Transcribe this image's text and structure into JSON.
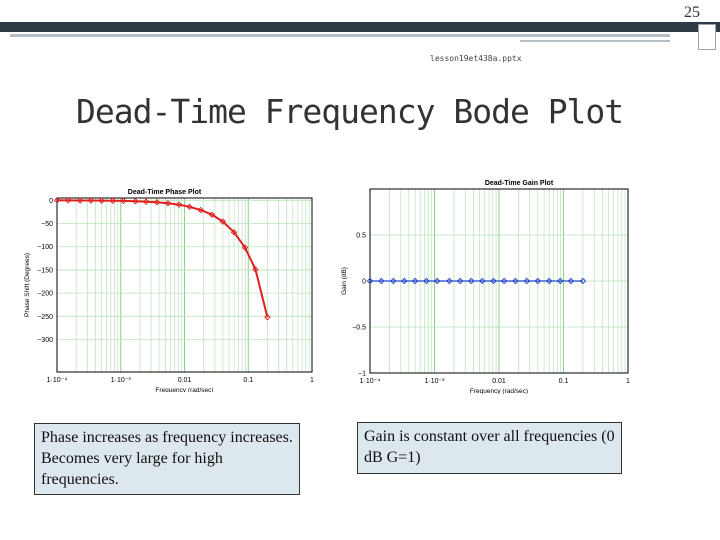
{
  "slide": {
    "number": "25",
    "filename": "lesson19et438a.pptx",
    "title": "Dead-Time Frequency Bode Plot"
  },
  "captions": {
    "left": "Phase increases as frequency increases.  Becomes very large for high frequencies.",
    "right": "Gain is constant over all frequencies  (0 dB  G=1)"
  },
  "colors": {
    "series": "#e02020",
    "gain_series": "#2244cc",
    "grid": "#b9e3b9",
    "axis": "#000000"
  },
  "chart_data": [
    {
      "type": "line",
      "title": "Dead-Time Phase Plot",
      "xlabel": "Frequency (rad/sec)",
      "ylabel": "Phase Shift (Degrees)",
      "xscale": "log",
      "xlim": [
        0.0001,
        1
      ],
      "ylim": [
        -370,
        5
      ],
      "xticks": [
        0.0001,
        0.001,
        0.01,
        0.1,
        1
      ],
      "xtick_labels": [
        "1·10⁻⁴",
        "1·10⁻³",
        "0.01",
        "0.1",
        "1"
      ],
      "yticks": [
        0,
        -50,
        -100,
        -150,
        -200,
        -250,
        -300
      ],
      "ytick_labels": [
        "0",
        "−50",
        "−100",
        "−150",
        "−200",
        "−250",
        "−300"
      ],
      "series": [
        {
          "name": "Phase",
          "x": [
            0.0001,
            0.00015,
            0.00023,
            0.00034,
            0.0005,
            0.00075,
            0.0011,
            0.0017,
            0.0025,
            0.0037,
            0.0055,
            0.0082,
            0.012,
            0.018,
            0.027,
            0.04,
            0.06,
            0.089,
            0.13,
            0.2
          ],
          "y": [
            0,
            -0.2,
            -0.3,
            -0.4,
            -0.6,
            -0.9,
            -1.3,
            -1.9,
            -2.9,
            -4.2,
            -6.3,
            -9.4,
            -14,
            -21,
            -31,
            -46,
            -69,
            -102,
            -149,
            -252
          ]
        }
      ]
    },
    {
      "type": "line",
      "title": "Dead-Time Gain Plot",
      "xlabel": "Frequency (rad/sec)",
      "ylabel": "Gain (dB)",
      "xscale": "log",
      "xlim": [
        0.0001,
        1
      ],
      "ylim": [
        -1,
        1
      ],
      "xticks": [
        0.0001,
        0.001,
        0.01,
        0.1,
        1
      ],
      "xtick_labels": [
        "1·10⁻⁴",
        "1·10⁻³",
        "0.01",
        "0.1",
        "1"
      ],
      "yticks": [
        0.5,
        0,
        -0.5,
        -1
      ],
      "ytick_labels": [
        "0.5",
        "0",
        "−0.5",
        "−1"
      ],
      "series": [
        {
          "name": "Gain",
          "x": [
            0.0001,
            0.00015,
            0.00023,
            0.00034,
            0.0005,
            0.00075,
            0.0011,
            0.0017,
            0.0025,
            0.0037,
            0.0055,
            0.0082,
            0.012,
            0.018,
            0.027,
            0.04,
            0.06,
            0.089,
            0.13,
            0.2
          ],
          "y": [
            0,
            0,
            0,
            0,
            0,
            0,
            0,
            0,
            0,
            0,
            0,
            0,
            0,
            0,
            0,
            0,
            0,
            0,
            0,
            0
          ]
        }
      ]
    }
  ]
}
